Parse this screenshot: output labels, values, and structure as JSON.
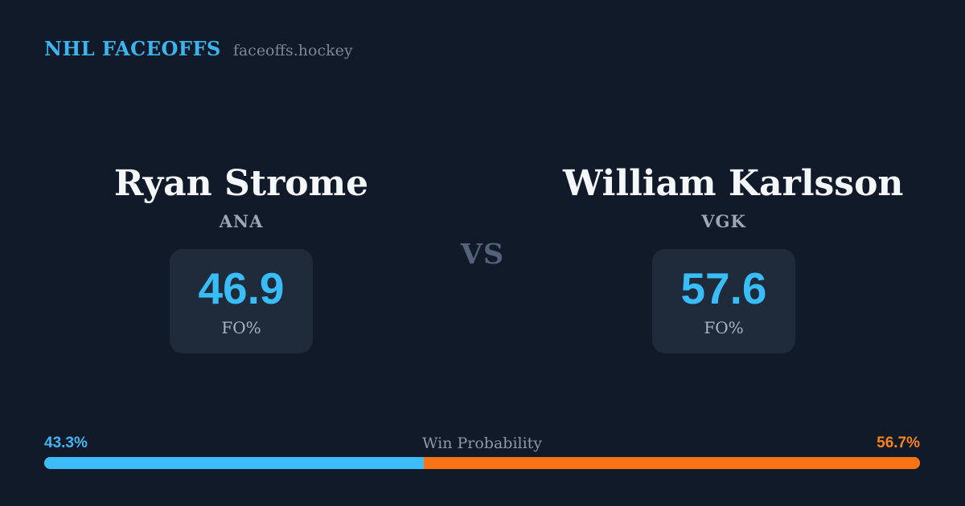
{
  "header": {
    "brand": "NHL FACEOFFS",
    "site": "faceoffs.hockey"
  },
  "matchup": {
    "vs_label": "VS",
    "left": {
      "name": "Ryan Strome",
      "team": "ANA",
      "stat_value": "46.9",
      "stat_label": "FO%"
    },
    "right": {
      "name": "William Karlsson",
      "team": "VGK",
      "stat_value": "57.6",
      "stat_label": "FO%"
    }
  },
  "win_probability": {
    "label": "Win Probability",
    "left_pct_label": "43.3%",
    "right_pct_label": "56.7%",
    "left_value": 43.3,
    "right_value": 56.7
  },
  "colors": {
    "background": "#111a29",
    "card": "#1f2a3a",
    "accent_blue": "#38bdf8",
    "accent_orange": "#f97316",
    "brand_blue": "#3cb4f0",
    "muted_gray": "#9ca8ba",
    "vs_gray": "#53617a",
    "name_white": "#f4f7fa"
  },
  "chart_data": {
    "type": "bar",
    "title": "Win Probability",
    "categories": [
      "Ryan Strome (ANA)",
      "William Karlsson (VGK)"
    ],
    "series": [
      {
        "name": "Faceoff %",
        "values": [
          46.9,
          57.6
        ]
      },
      {
        "name": "Win Probability %",
        "values": [
          43.3,
          56.7
        ]
      }
    ],
    "xlabel": "",
    "ylabel": "",
    "legend_position": "none",
    "notes": "Single horizontal stacked bar: blue segment 43.3% (left player), orange segment 56.7% (right player)"
  }
}
